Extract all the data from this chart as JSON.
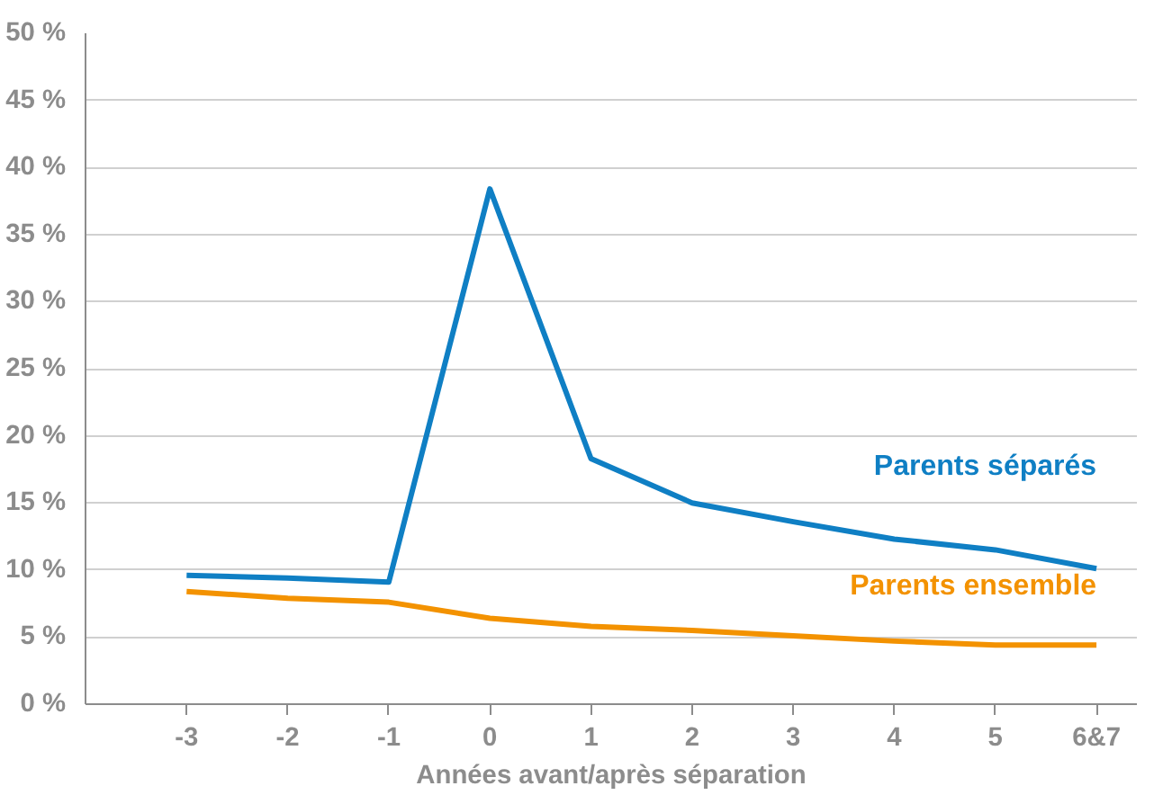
{
  "chart_data": {
    "type": "line",
    "xlabel": "Années avant/après séparation",
    "categories": [
      "-3",
      "-2",
      "-1",
      "0",
      "1",
      "2",
      "3",
      "4",
      "5",
      "6&7"
    ],
    "series": [
      {
        "name": "Parents séparés",
        "color": "#0f7fc4",
        "values": [
          9.6,
          9.4,
          9.1,
          38.4,
          18.3,
          15.0,
          13.6,
          12.3,
          11.5,
          10.1
        ]
      },
      {
        "name": "Parents ensemble",
        "color": "#f39200",
        "values": [
          8.4,
          7.9,
          7.6,
          6.4,
          5.8,
          5.5,
          5.1,
          4.7,
          4.4,
          4.4
        ]
      }
    ],
    "ylim": [
      0,
      50
    ],
    "yticks": [
      {
        "value": 0,
        "label": "0 %"
      },
      {
        "value": 5,
        "label": "5 %"
      },
      {
        "value": 10,
        "label": "10 %"
      },
      {
        "value": 15,
        "label": "15 %"
      },
      {
        "value": 20,
        "label": "20 %"
      },
      {
        "value": 25,
        "label": "25 %"
      },
      {
        "value": 30,
        "label": "30 %"
      },
      {
        "value": 35,
        "label": "35 %"
      },
      {
        "value": 40,
        "label": "40 %"
      },
      {
        "value": 45,
        "label": "45 %"
      },
      {
        "value": 50,
        "label": "50 %"
      }
    ],
    "grid": "y",
    "legend": false,
    "marker": "none",
    "line_style": "solid"
  }
}
